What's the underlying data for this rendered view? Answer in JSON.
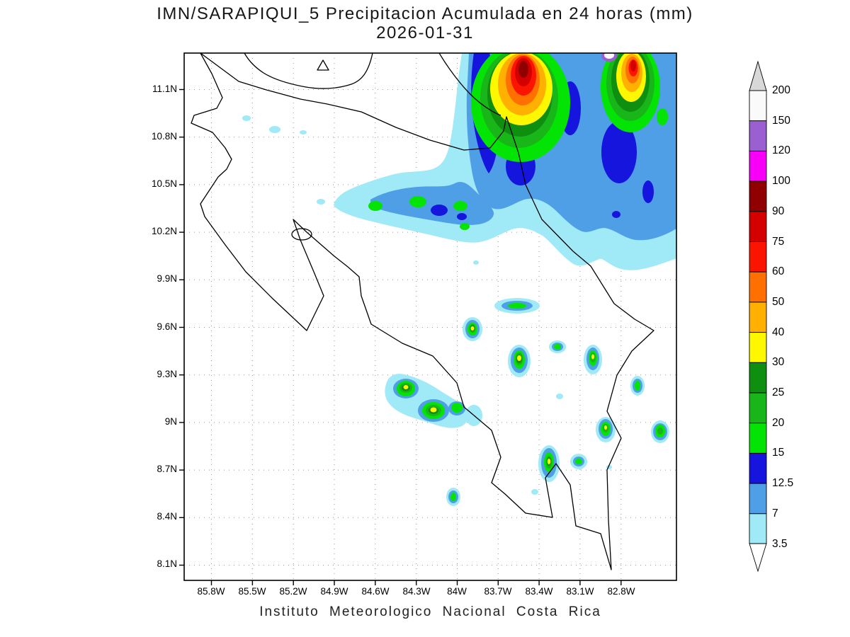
{
  "title": {
    "line1": "IMN/SARAPIQUI_5 Precipitacion Acumulada en 24 horas (mm)",
    "line2": "2026-01-31"
  },
  "footer": "Instituto Meteorologico Nacional Costa Rica",
  "axes": {
    "y_ticks": [
      "11.1N",
      "10.8N",
      "10.5N",
      "10.2N",
      "9.9N",
      "9.6N",
      "9.3N",
      "9N",
      "8.7N",
      "8.4N",
      "8.1N"
    ],
    "x_ticks": [
      "85.8W",
      "85.5W",
      "85.2W",
      "84.9W",
      "84.6W",
      "84.3W",
      "84W",
      "83.7W",
      "83.4W",
      "83.1W",
      "82.8W"
    ]
  },
  "colorbar": {
    "levels": [
      "200",
      "150",
      "120",
      "100",
      "90",
      "75",
      "60",
      "50",
      "40",
      "30",
      "25",
      "20",
      "15",
      "12.5",
      "7",
      "3.5"
    ],
    "palette": [
      "#d8d8d8",
      "#fafafa",
      "#9a5fd0",
      "#f800f8",
      "#900000",
      "#d40000",
      "#fb1500",
      "#ff7000",
      "#ffb000",
      "#fdf800",
      "#0f8f0f",
      "#18b618",
      "#04e404",
      "#1515dd",
      "#4f9fe6",
      "#a0e9f7",
      "#ffffff"
    ]
  },
  "chart_data": {
    "type": "heatmap",
    "title": "IMN/SARAPIQUI_5 Precipitacion Acumulada en 24 horas (mm)",
    "date": "2026-01-31",
    "units": "mm",
    "region": "Costa Rica",
    "source": "Instituto Meteorologico Nacional Costa Rica",
    "lat_range": [
      "8.1N",
      "11.1N"
    ],
    "lon_range": [
      "85.8W",
      "82.8W"
    ],
    "grid_interval_deg": 0.3,
    "levels_mm": [
      3.5,
      7,
      12.5,
      15,
      20,
      25,
      30,
      40,
      50,
      60,
      75,
      90,
      100,
      120,
      150,
      200
    ],
    "level_colors_low_to_high": [
      "#a0e9f7",
      "#4f9fe6",
      "#1515dd",
      "#04e404",
      "#18b618",
      "#0f8f0f",
      "#fdf800",
      "#ffb000",
      "#ff7000",
      "#fb1500",
      "#d40000",
      "#900000",
      "#f800f8",
      "#9a5fd0",
      "#fafafa",
      "#d8d8d8"
    ],
    "features": [
      {
        "area": "Large intense system over northeast Caribbean slope / Sarapiqui-Tortuguero and into Nicaragua",
        "approx_lat": 11.0,
        "approx_lon": -83.6,
        "peak_mm": "90-200",
        "desc": "broad area above 50 mm with red cores 75-100 mm and a small white spot above 150 mm"
      },
      {
        "area": "Secondary intense core near northeast corner of domain",
        "approx_lat": 11.1,
        "approx_lon": -82.9,
        "peak_mm": "75-90"
      },
      {
        "area": "West-extending rain band along ~10.4N across northern plains",
        "approx_lon_span": [
          -84.8,
          -83.6
        ],
        "peak_mm": "15-25",
        "desc": "mostly 3.5-12.5 mm with scattered green cells 15-25 mm"
      },
      {
        "area": "Scattered convective cells over central mountains, Talamanca and south Pacific",
        "approx_lat_span": [
          8.4,
          9.7
        ],
        "peak_mm": "30-40",
        "count": 12,
        "desc": "small cyan/blue cells with green cores and yellow centers 30-40 mm"
      }
    ],
    "legend_position": "right",
    "grid": "dotted"
  }
}
